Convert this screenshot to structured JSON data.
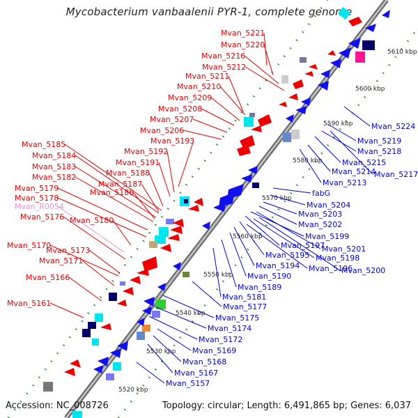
{
  "title": "Mycobacterium vanbaalenii PYR-1, complete genome",
  "footer": {
    "accession": "Accession: NC_008726",
    "summary": "Topology: circular; Length: 6,491,865 bp; Genes: 6,037"
  },
  "colors": {
    "plus_strand_label": "#e00000",
    "minus_strand_label": "#0000cc",
    "rna_label": "#e890d0",
    "plus_gene": "#ee0000",
    "minus_gene": "#1010ee",
    "axis": "#888888",
    "tick": "#2a8a2a"
  },
  "scale_ticks": [
    {
      "label": "5520 kbp"
    },
    {
      "label": "5530 kbp"
    },
    {
      "label": "5540 kbp"
    },
    {
      "label": "5550 kbp"
    },
    {
      "label": "5560 kbp"
    },
    {
      "label": "5570 kbp"
    },
    {
      "label": "5580 kbp"
    },
    {
      "label": "5590 kbp"
    },
    {
      "label": "5600 kbp"
    },
    {
      "label": "5610 kbp"
    }
  ],
  "left_labels": [
    {
      "text": "Mvan_5221",
      "type": "gene"
    },
    {
      "text": "Mvan_5220",
      "type": "gene"
    },
    {
      "text": "Mvan_5216",
      "type": "gene"
    },
    {
      "text": "Mvan_5212",
      "type": "gene"
    },
    {
      "text": "Mvan_5211",
      "type": "gene"
    },
    {
      "text": "Mvan_5210",
      "type": "gene"
    },
    {
      "text": "Mvan_5209",
      "type": "gene"
    },
    {
      "text": "Mvan_5208",
      "type": "gene"
    },
    {
      "text": "Mvan_5207",
      "type": "gene"
    },
    {
      "text": "Mvan_5206",
      "type": "gene"
    },
    {
      "text": "Mvan_5193",
      "type": "gene"
    },
    {
      "text": "Mvan_5192",
      "type": "gene"
    },
    {
      "text": "Mvan_5191",
      "type": "gene"
    },
    {
      "text": "Mvan_5185",
      "type": "gene"
    },
    {
      "text": "Mvan_5184",
      "type": "gene"
    },
    {
      "text": "Mvan_5188",
      "type": "gene"
    },
    {
      "text": "Mvan_5183",
      "type": "gene"
    },
    {
      "text": "Mvan_5187",
      "type": "gene"
    },
    {
      "text": "Mvan_5182",
      "type": "gene"
    },
    {
      "text": "Mvan_5186",
      "type": "gene"
    },
    {
      "text": "Mvan_5179",
      "type": "gene"
    },
    {
      "text": "Mvan_5178",
      "type": "gene"
    },
    {
      "text": "Mvan_R0054",
      "type": "rna"
    },
    {
      "text": "Mvan_5176",
      "type": "gene"
    },
    {
      "text": "Mvan_5180",
      "type": "gene"
    },
    {
      "text": "Mvan_5170",
      "type": "gene"
    },
    {
      "text": "Mvan_5173",
      "type": "gene"
    },
    {
      "text": "Mvan_5171",
      "type": "gene"
    },
    {
      "text": "Mvan_5166",
      "type": "gene"
    },
    {
      "text": "Mvan_5161",
      "type": "gene"
    }
  ],
  "right_labels": [
    {
      "text": "Mvan_5224"
    },
    {
      "text": "Mvan_5219"
    },
    {
      "text": "Mvan_5218"
    },
    {
      "text": "Mvan_5215"
    },
    {
      "text": "Mvan_5217"
    },
    {
      "text": "Mvan_5214"
    },
    {
      "text": "Mvan_5213"
    },
    {
      "text": "fabG"
    },
    {
      "text": "Mvan_5204"
    },
    {
      "text": "Mvan_5203"
    },
    {
      "text": "Mvan_5202"
    },
    {
      "text": "Mvan_5199"
    },
    {
      "text": "Mvan_5201"
    },
    {
      "text": "Mvan_5197"
    },
    {
      "text": "Mvan_5198"
    },
    {
      "text": "Mvan_5195"
    },
    {
      "text": "Mvan_5196"
    },
    {
      "text": "Mvan_5194"
    },
    {
      "text": "Mvan_5200"
    },
    {
      "text": "Mvan_5190"
    },
    {
      "text": "Mvan_5189"
    },
    {
      "text": "Mvan_5181"
    },
    {
      "text": "Mvan_5177"
    },
    {
      "text": "Mvan_5175"
    },
    {
      "text": "Mvan_5174"
    },
    {
      "text": "Mvan_5172"
    },
    {
      "text": "Mvan_5169"
    },
    {
      "text": "Mvan_5168"
    },
    {
      "text": "Mvan_5167"
    },
    {
      "text": "Mvan_5157"
    }
  ]
}
